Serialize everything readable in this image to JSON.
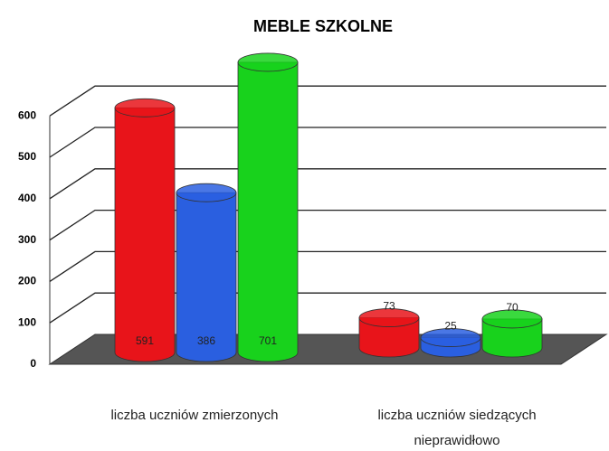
{
  "chart_data": {
    "type": "bar3d",
    "title": "MEBLE SZKOLNE",
    "categories": [
      "liczba uczniów zmierzonych",
      "liczba uczniów siedzących nieprawidłowo"
    ],
    "series": [
      {
        "color": "#e8141a",
        "values": [
          591,
          73
        ]
      },
      {
        "color": "#2a5fe0",
        "values": [
          386,
          25
        ]
      },
      {
        "color": "#18d21c",
        "values": [
          701,
          70
        ]
      }
    ],
    "ylim": [
      0,
      700
    ],
    "yticks": [
      0,
      100,
      200,
      300,
      400,
      500,
      600
    ],
    "grid": true
  }
}
